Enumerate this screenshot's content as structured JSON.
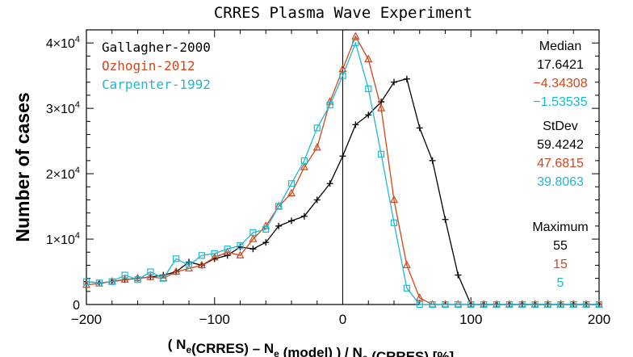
{
  "chart_data": {
    "type": "line",
    "title": "CRRES Plasma Wave Experiment",
    "xlabel": {
      "parts": [
        {
          "text": "( N",
          "sub": false
        },
        {
          "text": "e",
          "sub": true
        },
        {
          "text": "(CRRES) – N",
          "sub": false
        },
        {
          "text": "e",
          "sub": true
        },
        {
          "text": " (model) ) / N",
          "sub": false
        },
        {
          "text": "e",
          "sub": true
        },
        {
          "text": " (CRRES)   [%]",
          "sub": false
        }
      ]
    },
    "ylabel": "Number of cases",
    "xlim": [
      -200,
      200
    ],
    "ylim": [
      0,
      42000
    ],
    "xticks": [
      {
        "value": -200,
        "label": "−200"
      },
      {
        "value": -100,
        "label": "−100"
      },
      {
        "value": 0,
        "label": "0"
      },
      {
        "value": 100,
        "label": "100"
      },
      {
        "value": 200,
        "label": "200"
      }
    ],
    "yticks": [
      {
        "value": 0,
        "label": "0",
        "exp": ""
      },
      {
        "value": 10000,
        "label": "1×10",
        "exp": "4"
      },
      {
        "value": 20000,
        "label": "2×10",
        "exp": "4"
      },
      {
        "value": 30000,
        "label": "3×10",
        "exp": "4"
      },
      {
        "value": 40000,
        "label": "4×10",
        "exp": "4"
      }
    ],
    "x_minor_step": 20,
    "y_minor_step": 2000,
    "vline_x": 0,
    "series": [
      {
        "name": "Gallagher-2000",
        "color": "#000000",
        "marker": "plus",
        "x": [
          -200,
          -190,
          -180,
          -170,
          -160,
          -150,
          -140,
          -130,
          -120,
          -110,
          -100,
          -90,
          -80,
          -70,
          -60,
          -50,
          -40,
          -30,
          -20,
          -10,
          0,
          10,
          20,
          30,
          40,
          50,
          60,
          70,
          80,
          90,
          100,
          110,
          120,
          130,
          140,
          150,
          160,
          170,
          180,
          190,
          200
        ],
        "y": [
          3500,
          3300,
          3500,
          3800,
          4000,
          4200,
          4500,
          5000,
          6500,
          6000,
          7000,
          7500,
          8800,
          8500,
          9500,
          12000,
          12800,
          13500,
          16000,
          18500,
          22700,
          27500,
          29000,
          31000,
          34000,
          34500,
          27000,
          22000,
          13000,
          4500,
          0,
          0,
          0,
          0,
          0,
          0,
          0,
          0,
          0,
          0,
          0
        ]
      },
      {
        "name": "Ozhogin-2012",
        "color": "#d2461a",
        "marker": "triangle",
        "x": [
          -200,
          -190,
          -180,
          -170,
          -160,
          -150,
          -140,
          -130,
          -120,
          -110,
          -100,
          -90,
          -80,
          -70,
          -60,
          -50,
          -40,
          -30,
          -20,
          -10,
          0,
          10,
          20,
          30,
          40,
          50,
          60,
          70,
          80,
          90,
          100,
          110,
          120,
          130,
          140,
          150,
          160,
          170,
          180,
          190,
          200
        ],
        "y": [
          3000,
          3200,
          3500,
          3800,
          4000,
          4200,
          4000,
          5000,
          5500,
          6000,
          7200,
          8000,
          7500,
          10000,
          12000,
          15000,
          17000,
          21000,
          24000,
          31000,
          36000,
          41000,
          37500,
          30000,
          16000,
          6000,
          1000,
          0,
          0,
          0,
          0,
          0,
          0,
          0,
          0,
          0,
          0,
          0,
          0,
          0,
          0
        ]
      },
      {
        "name": "Carpenter-1992",
        "color": "#1fb8d2",
        "marker": "square",
        "x": [
          -200,
          -190,
          -180,
          -170,
          -160,
          -150,
          -140,
          -130,
          -120,
          -110,
          -100,
          -90,
          -80,
          -70,
          -60,
          -50,
          -40,
          -30,
          -20,
          -10,
          0,
          10,
          20,
          30,
          40,
          50,
          60,
          70,
          80,
          90,
          100,
          110,
          120,
          130,
          140,
          150,
          160,
          170,
          180,
          190,
          200
        ],
        "y": [
          3500,
          3300,
          3500,
          4500,
          3800,
          5000,
          4000,
          7000,
          6000,
          7500,
          7800,
          8500,
          9000,
          11000,
          11500,
          15000,
          18500,
          22000,
          27000,
          30500,
          35000,
          40000,
          33000,
          23000,
          12500,
          2500,
          0,
          0,
          0,
          0,
          0,
          0,
          0,
          0,
          0,
          0,
          0,
          0,
          0,
          0,
          0
        ]
      }
    ],
    "legend": {
      "position": "top-left",
      "entries": [
        "Gallagher-2000",
        "Ozhogin-2012",
        "Carpenter-1992"
      ]
    },
    "stats": [
      {
        "heading": "Median",
        "values": [
          "17.6421",
          "−4.34308",
          "−1.53535"
        ]
      },
      {
        "heading": "StDev",
        "values": [
          "59.4242",
          "47.6815",
          "39.8063"
        ]
      },
      {
        "heading": "Maximum",
        "values": [
          "55",
          "15",
          "5"
        ]
      }
    ],
    "grid": false
  }
}
